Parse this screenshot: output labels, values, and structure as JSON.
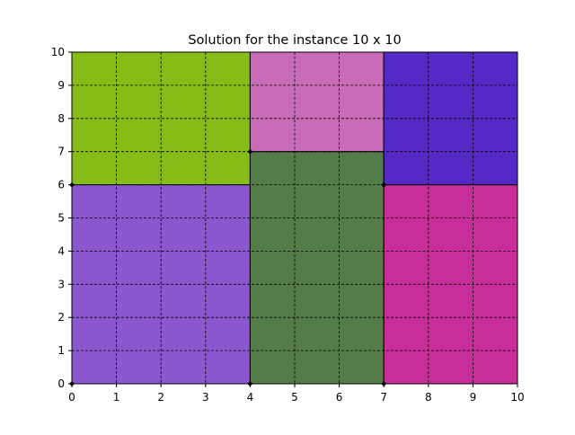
{
  "chart_data": {
    "type": "rectangle-packing",
    "title": "Solution for the instance 10 x 10",
    "xlabel": "",
    "ylabel": "",
    "xlim": [
      0,
      10
    ],
    "ylim": [
      0,
      10
    ],
    "grid": true,
    "x_ticks": [
      "0",
      "1",
      "2",
      "3",
      "4",
      "5",
      "6",
      "7",
      "8",
      "9",
      "10"
    ],
    "y_ticks": [
      "0",
      "1",
      "2",
      "3",
      "4",
      "5",
      "6",
      "7",
      "8",
      "9",
      "10"
    ],
    "rectangles": [
      {
        "x": 0,
        "y": 0,
        "width": 4,
        "height": 6,
        "color": "#8b57cf"
      },
      {
        "x": 0,
        "y": 6,
        "width": 4,
        "height": 4,
        "color": "#86bc18"
      },
      {
        "x": 4,
        "y": 0,
        "width": 3,
        "height": 7,
        "color": "#547c48"
      },
      {
        "x": 4,
        "y": 7,
        "width": 3,
        "height": 3,
        "color": "#c96cb7"
      },
      {
        "x": 7,
        "y": 0,
        "width": 3,
        "height": 6,
        "color": "#c82e9a"
      },
      {
        "x": 7,
        "y": 6,
        "width": 3,
        "height": 4,
        "color": "#5429c6"
      }
    ],
    "corner_markers": [
      {
        "x": 0,
        "y": 0
      },
      {
        "x": 0,
        "y": 6
      },
      {
        "x": 4,
        "y": 0
      },
      {
        "x": 4,
        "y": 7
      },
      {
        "x": 7,
        "y": 0
      },
      {
        "x": 7,
        "y": 6
      }
    ]
  }
}
